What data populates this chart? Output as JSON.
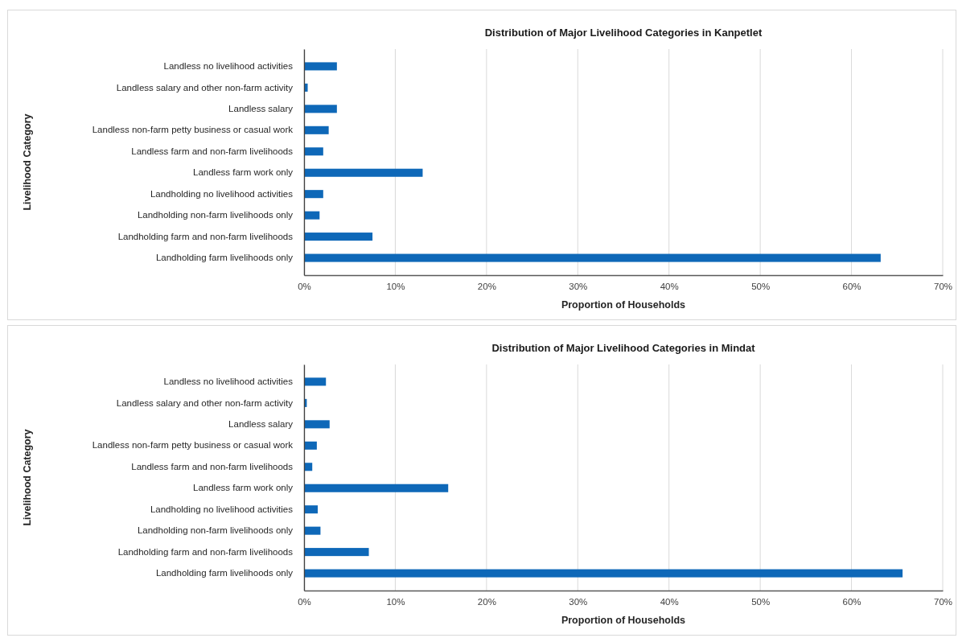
{
  "chart_data": [
    {
      "type": "bar",
      "orientation": "horizontal",
      "title": "Distribution of Major Livelihood Categories in Kanpetlet",
      "xlabel": "Proportion of Households",
      "ylabel": "Livelihood Category",
      "categories": [
        "Landless no livelihood activities",
        "Landless salary and other non-farm activity",
        "Landless salary",
        "Landless non-farm petty business or casual work",
        "Landless farm and non-farm livelihoods",
        "Landless farm work only",
        "Landholding no livelihood activities",
        "Landholding non-farm livelihoods only",
        "Landholding farm and non-farm livelihoods",
        "Landholding farm livelihoods only"
      ],
      "values": [
        3.6,
        0.4,
        3.6,
        2.7,
        2.1,
        13.0,
        2.1,
        1.7,
        7.5,
        63.2
      ],
      "color": "#0e68b8",
      "xlim": [
        0,
        70
      ],
      "xticks": [
        {
          "value": 0,
          "label": "0%"
        },
        {
          "value": 10,
          "label": "10%"
        },
        {
          "value": 20,
          "label": "20%"
        },
        {
          "value": 30,
          "label": "30%"
        },
        {
          "value": 40,
          "label": "40%"
        },
        {
          "value": 50,
          "label": "50%"
        },
        {
          "value": 60,
          "label": "60%"
        },
        {
          "value": 70,
          "label": "70%"
        }
      ],
      "grid": "x"
    },
    {
      "type": "bar",
      "orientation": "horizontal",
      "title": "Distribution of Major Livelihood Categories in Mindat",
      "xlabel": "Proportion of Households",
      "ylabel": "Livelihood Category",
      "categories": [
        "Landless no livelihood activities",
        "Landless salary and other non-farm activity",
        "Landless salary",
        "Landless non-farm petty business or casual work",
        "Landless farm and non-farm livelihoods",
        "Landless farm work only",
        "Landholding no livelihood activities",
        "Landholding non-farm livelihoods only",
        "Landholding farm and non-farm livelihoods",
        "Landholding farm livelihoods only"
      ],
      "values": [
        2.4,
        0.3,
        2.8,
        1.4,
        0.9,
        15.8,
        1.5,
        1.8,
        7.1,
        65.6
      ],
      "color": "#0e68b8",
      "xlim": [
        0,
        70
      ],
      "xticks": [
        {
          "value": 0,
          "label": "0%"
        },
        {
          "value": 10,
          "label": "10%"
        },
        {
          "value": 20,
          "label": "20%"
        },
        {
          "value": 30,
          "label": "30%"
        },
        {
          "value": 40,
          "label": "40%"
        },
        {
          "value": 50,
          "label": "50%"
        },
        {
          "value": 60,
          "label": "60%"
        },
        {
          "value": 70,
          "label": "70%"
        }
      ],
      "grid": "x"
    }
  ]
}
